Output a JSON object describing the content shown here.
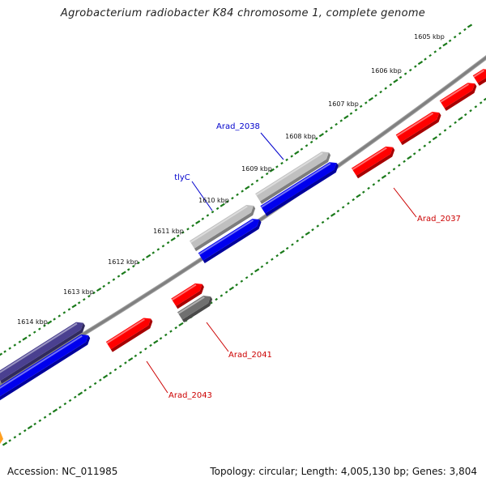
{
  "title": "Agrobacterium radiobacter K84 chromosome 1, complete genome",
  "footer": {
    "accession": "Accession: NC_011985",
    "summary": "Topology: circular; Length: 4,005,130 bp; Genes: 3,804"
  },
  "colors": {
    "backbone": "#808080",
    "tick": "#1a7a1a",
    "forward_label": "#0000cc",
    "reverse_label": "#cc0000",
    "gene_red": "#ff0000",
    "gene_blue": "#0000ee",
    "gene_gray": "#c0c0c0",
    "gene_darkgray": "#707070",
    "gene_navy": "#4a4090",
    "gene_orange": "#ffa020"
  },
  "scale_labels": [
    "1605 kbp",
    "1606 kbp",
    "1607 kbp",
    "1608 kbp",
    "1609 kbp",
    "1610 kbp",
    "1611 kbp",
    "1612 kbp",
    "1613 kbp",
    "1614 kbp"
  ],
  "gene_labels": [
    {
      "text": "Arad_2038",
      "strand": "forward"
    },
    {
      "text": "tlyC",
      "strand": "forward"
    },
    {
      "text": "Arad_2037",
      "strand": "reverse"
    },
    {
      "text": "Arad_2041",
      "strand": "reverse"
    },
    {
      "text": "Arad_2043",
      "strand": "reverse"
    }
  ]
}
